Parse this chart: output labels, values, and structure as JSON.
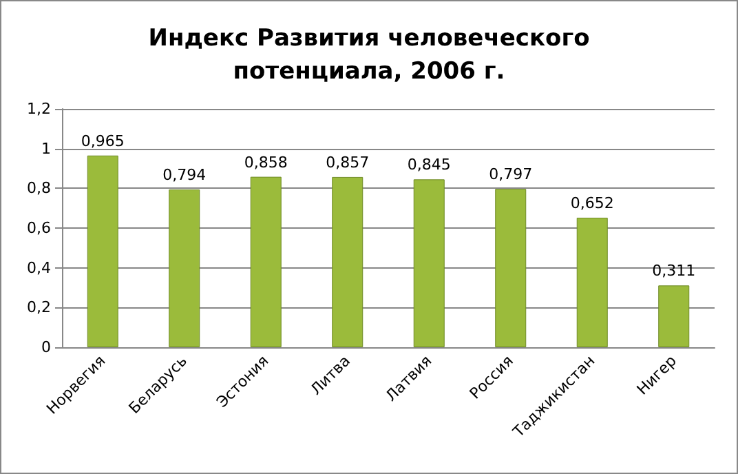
{
  "chart_data": {
    "type": "bar",
    "title": "Индекс Развития человеческого\nпотенциала, 2006 г.",
    "categories": [
      "Норвегия",
      "Беларусь",
      "Эстония",
      "Литва",
      "Латвия",
      "Россия",
      "Таджикистан",
      "Нигер"
    ],
    "values": [
      0.965,
      0.794,
      0.858,
      0.857,
      0.845,
      0.797,
      0.652,
      0.311
    ],
    "value_labels": [
      "0,965",
      "0,794",
      "0,858",
      "0,857",
      "0,845",
      "0,797",
      "0,652",
      "0,311"
    ],
    "color": "#9bbb3b",
    "ylim": [
      0,
      1.2
    ],
    "yticks": [
      {
        "value": 0,
        "label": "0"
      },
      {
        "value": 0.2,
        "label": "0,2"
      },
      {
        "value": 0.4,
        "label": "0,4"
      },
      {
        "value": 0.6,
        "label": "0,6"
      },
      {
        "value": 0.8,
        "label": "0,8"
      },
      {
        "value": 1,
        "label": "1"
      },
      {
        "value": 1.2,
        "label": "1,2"
      }
    ],
    "grid": "y"
  }
}
